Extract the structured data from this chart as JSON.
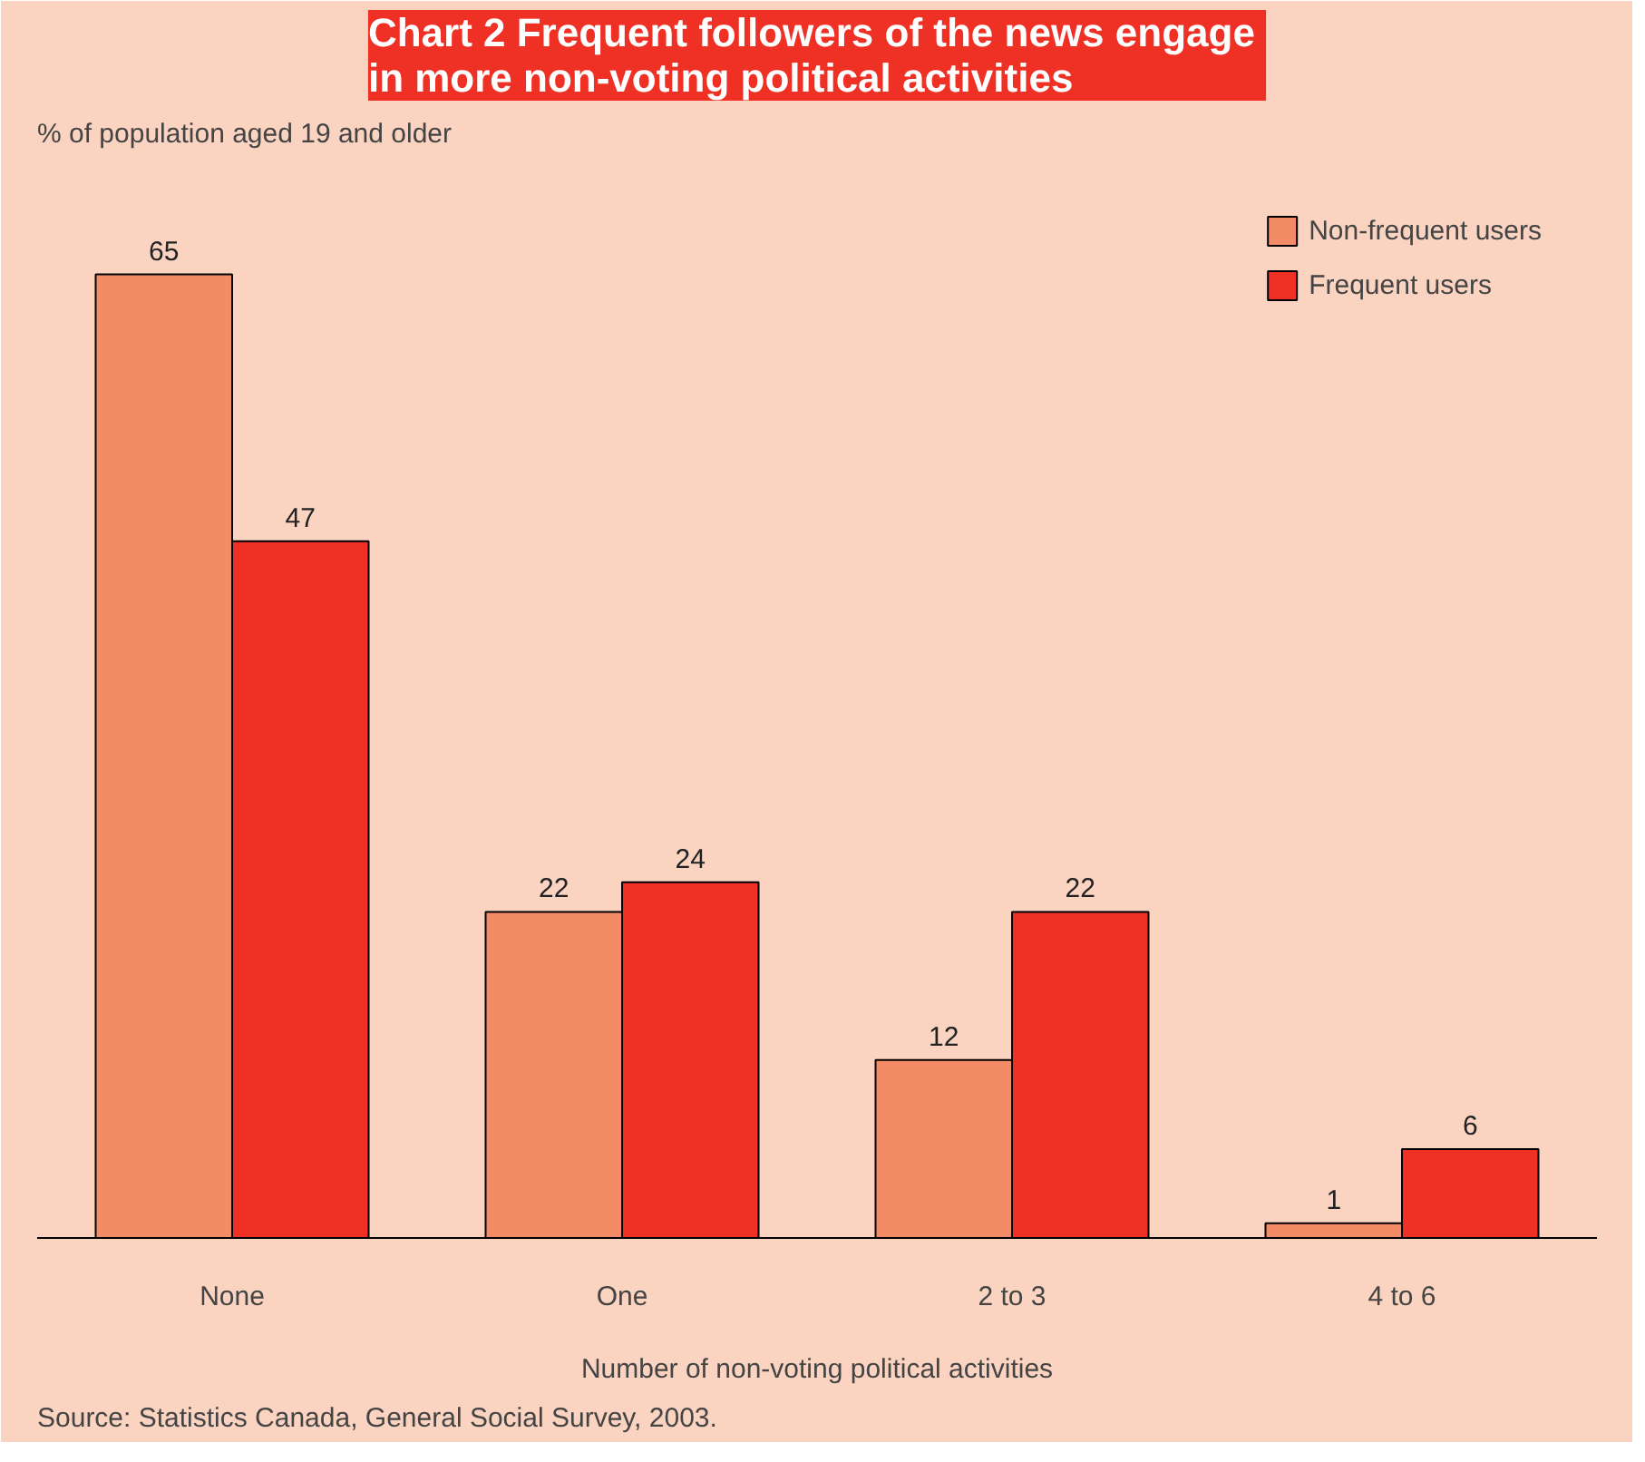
{
  "chart_data": {
    "type": "bar",
    "title": "Chart 2  Frequent followers of the news engage in more non-voting political activities",
    "ylabel": "% of population aged 19 and older",
    "xlabel": "Number of non-voting political activities",
    "categories": [
      "None",
      "One",
      "2 to 3",
      "4 to 6"
    ],
    "series": [
      {
        "name": "Non-frequent users",
        "color": "#f48b67",
        "values": [
          65,
          22,
          12,
          1
        ]
      },
      {
        "name": "Frequent users",
        "color": "#ee3124",
        "values": [
          47,
          24,
          22,
          6
        ]
      }
    ],
    "data_labels": true,
    "grid": false,
    "legend": "top right",
    "annotations": [
      "Source: Statistics Canada, General Social Survey, 2003."
    ]
  }
}
